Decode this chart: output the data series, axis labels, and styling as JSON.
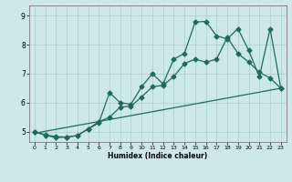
{
  "xlabel": "Humidex (Indice chaleur)",
  "xlim": [
    -0.5,
    23.5
  ],
  "ylim": [
    4.65,
    9.35
  ],
  "xticks": [
    0,
    1,
    2,
    3,
    4,
    5,
    6,
    7,
    8,
    9,
    10,
    11,
    12,
    13,
    14,
    15,
    16,
    17,
    18,
    19,
    20,
    21,
    22,
    23
  ],
  "yticks": [
    5,
    6,
    7,
    8,
    9
  ],
  "line_color": "#1e6b5e",
  "bg_color": "#cde8e8",
  "grid_color": "#aacece",
  "line1_x": [
    0,
    23
  ],
  "line1_y": [
    4.95,
    6.5
  ],
  "line2_x": [
    0,
    1,
    2,
    3,
    4,
    5,
    6,
    7,
    8,
    9,
    10,
    11,
    12,
    13,
    14,
    15,
    16,
    17,
    18,
    19,
    20,
    21,
    22,
    23
  ],
  "line2_y": [
    5.0,
    4.9,
    4.83,
    4.82,
    4.87,
    5.1,
    5.35,
    5.5,
    5.85,
    5.88,
    6.2,
    6.55,
    6.6,
    6.9,
    7.35,
    7.5,
    7.4,
    7.5,
    8.25,
    7.7,
    7.4,
    7.05,
    6.85,
    6.5
  ],
  "line3_x": [
    0,
    1,
    2,
    3,
    4,
    5,
    6,
    7,
    8,
    9,
    10,
    11,
    12,
    13,
    14,
    15,
    16,
    17,
    18,
    19,
    20,
    21,
    22,
    23
  ],
  "line3_y": [
    5.0,
    4.88,
    4.8,
    4.82,
    4.87,
    5.1,
    5.3,
    6.35,
    6.0,
    5.95,
    6.55,
    7.0,
    6.65,
    7.5,
    7.7,
    8.78,
    8.8,
    8.3,
    8.2,
    8.55,
    7.8,
    6.9,
    8.55,
    6.5
  ],
  "marker": "D",
  "markersize": 2.5,
  "linewidth": 0.9
}
